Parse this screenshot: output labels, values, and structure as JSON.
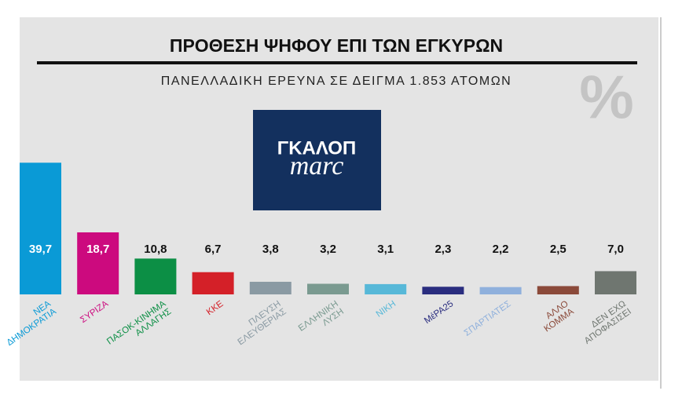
{
  "chart_data": {
    "type": "bar",
    "title": "ΠΡΟΘΕΣΗ ΨΗΦΟΥ ΕΠΙ ΤΩΝ ΕΓΚΥΡΩΝ",
    "subtitle": "ΠΑΝΕΛΛΑΔΙΚΗ ΕΡΕΥΝΑ ΣΕ ΔΕΙΓΜΑ 1.853 ΑΤΟΜΩΝ",
    "unit_symbol": "%",
    "categories": [
      "ΝΕΑ\nΔΗΜΟΚΡΑΤΙΑ",
      "ΣΥΡΙΖΑ",
      "ΠΑΣΟΚ-ΚΙΝΗΜΑ\nΑΛΛΑΓΗΣ",
      "ΚΚΕ",
      "ΠΛΕΥΣΗ\nΕΛΕΥΘΕΡΙΑΣ",
      "ΕΛΛΗΝΙΚΗ\nΛΥΣΗ",
      "ΝΙΚΗ",
      "ΜέΡΑ25",
      "ΣΠΑΡΤΙΑΤΕΣ",
      "ΑΛΛΟ\nΚΟΜΜΑ",
      "ΔΕΝ ΕΧΩ\nΑΠΟΦΑΣΙΣΕΙ"
    ],
    "values": [
      39.7,
      18.7,
      10.8,
      6.7,
      3.8,
      3.2,
      3.1,
      2.3,
      2.2,
      2.5,
      7.0
    ],
    "value_labels": [
      "39,7",
      "18,7",
      "10,8",
      "6,7",
      "3,8",
      "3,2",
      "3,1",
      "2,3",
      "2,2",
      "2,5",
      "7,0"
    ],
    "colors": [
      "#0a9ad6",
      "#cc0a7e",
      "#0c8f45",
      "#d42028",
      "#8a9aa3",
      "#7a9a90",
      "#57b8d8",
      "#2a2d7f",
      "#8fb0dc",
      "#8b4a3a",
      "#6f7670"
    ],
    "ylim": [
      0,
      40
    ]
  },
  "logo": {
    "line1": "ΓΚΑΛΟΠ",
    "line2": "marc"
  }
}
